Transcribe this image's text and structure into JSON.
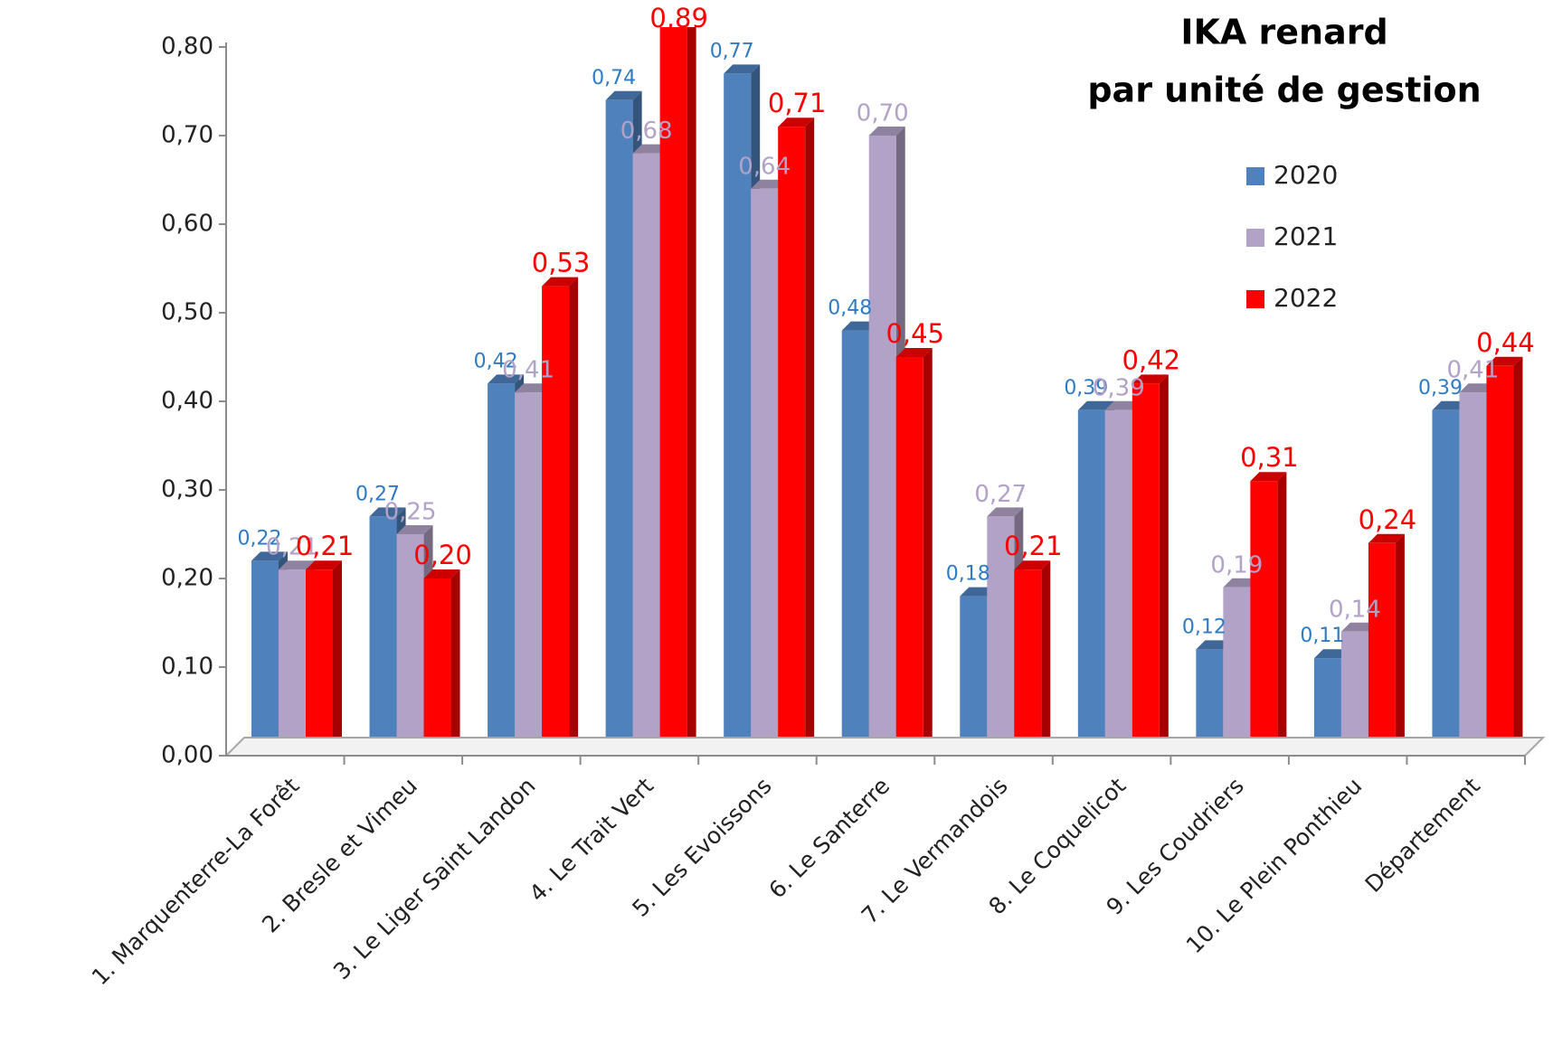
{
  "chart_data": {
    "type": "bar3d",
    "title": [
      "IKA renard",
      "par unité de gestion"
    ],
    "categories": [
      "1. Marquenterre-La Forêt",
      "2. Bresle et Vimeu",
      "3. Le Liger Saint Landon",
      "4. Le Trait Vert",
      "5. Les Evoissons",
      "6. Le Santerre",
      "7. Le Vermandois",
      "8. Le Coquelicot",
      "9. Les Coudriers",
      "10. Le Plein Ponthieu",
      "Département"
    ],
    "series": [
      {
        "name": "2020",
        "color": "#4f81bd",
        "label_color": "#2e7bc4",
        "values": [
          0.22,
          0.27,
          0.42,
          0.74,
          0.77,
          0.48,
          0.18,
          0.39,
          0.12,
          0.11,
          0.39
        ],
        "value_labels": [
          "0,22",
          "0,27",
          "0,42",
          "0,74",
          "0,77",
          "0,48",
          "0,18",
          "0,39",
          "0,12",
          "0,11",
          "0,39"
        ]
      },
      {
        "name": "2021",
        "color": "#b3a2c7",
        "label_color": "#b3a2c7",
        "values": [
          0.21,
          0.25,
          0.41,
          0.68,
          0.64,
          0.7,
          0.27,
          0.39,
          0.19,
          0.14,
          0.41
        ],
        "value_labels": [
          "0,21",
          "0,25",
          "0,41",
          "0,68",
          "0,64",
          "0,70",
          "0,27",
          "0,39",
          "0,19",
          "0,14",
          "0,41"
        ]
      },
      {
        "name": "2022",
        "color": "#ff0000",
        "label_color": "#ff0000",
        "values": [
          0.21,
          0.2,
          0.53,
          0.89,
          0.71,
          0.45,
          0.21,
          0.42,
          0.31,
          0.24,
          0.44
        ],
        "value_labels": [
          "0,21",
          "0,20",
          "0,53",
          "0,89",
          "0,71",
          "0,45",
          "0,21",
          "0,42",
          "0,31",
          "0,24",
          "0,44"
        ]
      }
    ],
    "ylim": [
      0,
      0.8
    ],
    "yticks": [
      {
        "value": 0,
        "label": "0,00"
      },
      {
        "value": 0.1,
        "label": "0,10"
      },
      {
        "value": 0.2,
        "label": "0,20"
      },
      {
        "value": 0.3,
        "label": "0,30"
      },
      {
        "value": 0.4,
        "label": "0,40"
      },
      {
        "value": 0.5,
        "label": "0,50"
      },
      {
        "value": 0.6,
        "label": "0,60"
      },
      {
        "value": 0.7,
        "label": "0,70"
      },
      {
        "value": 0.8,
        "label": "0,80"
      }
    ],
    "legend": "top-right"
  }
}
